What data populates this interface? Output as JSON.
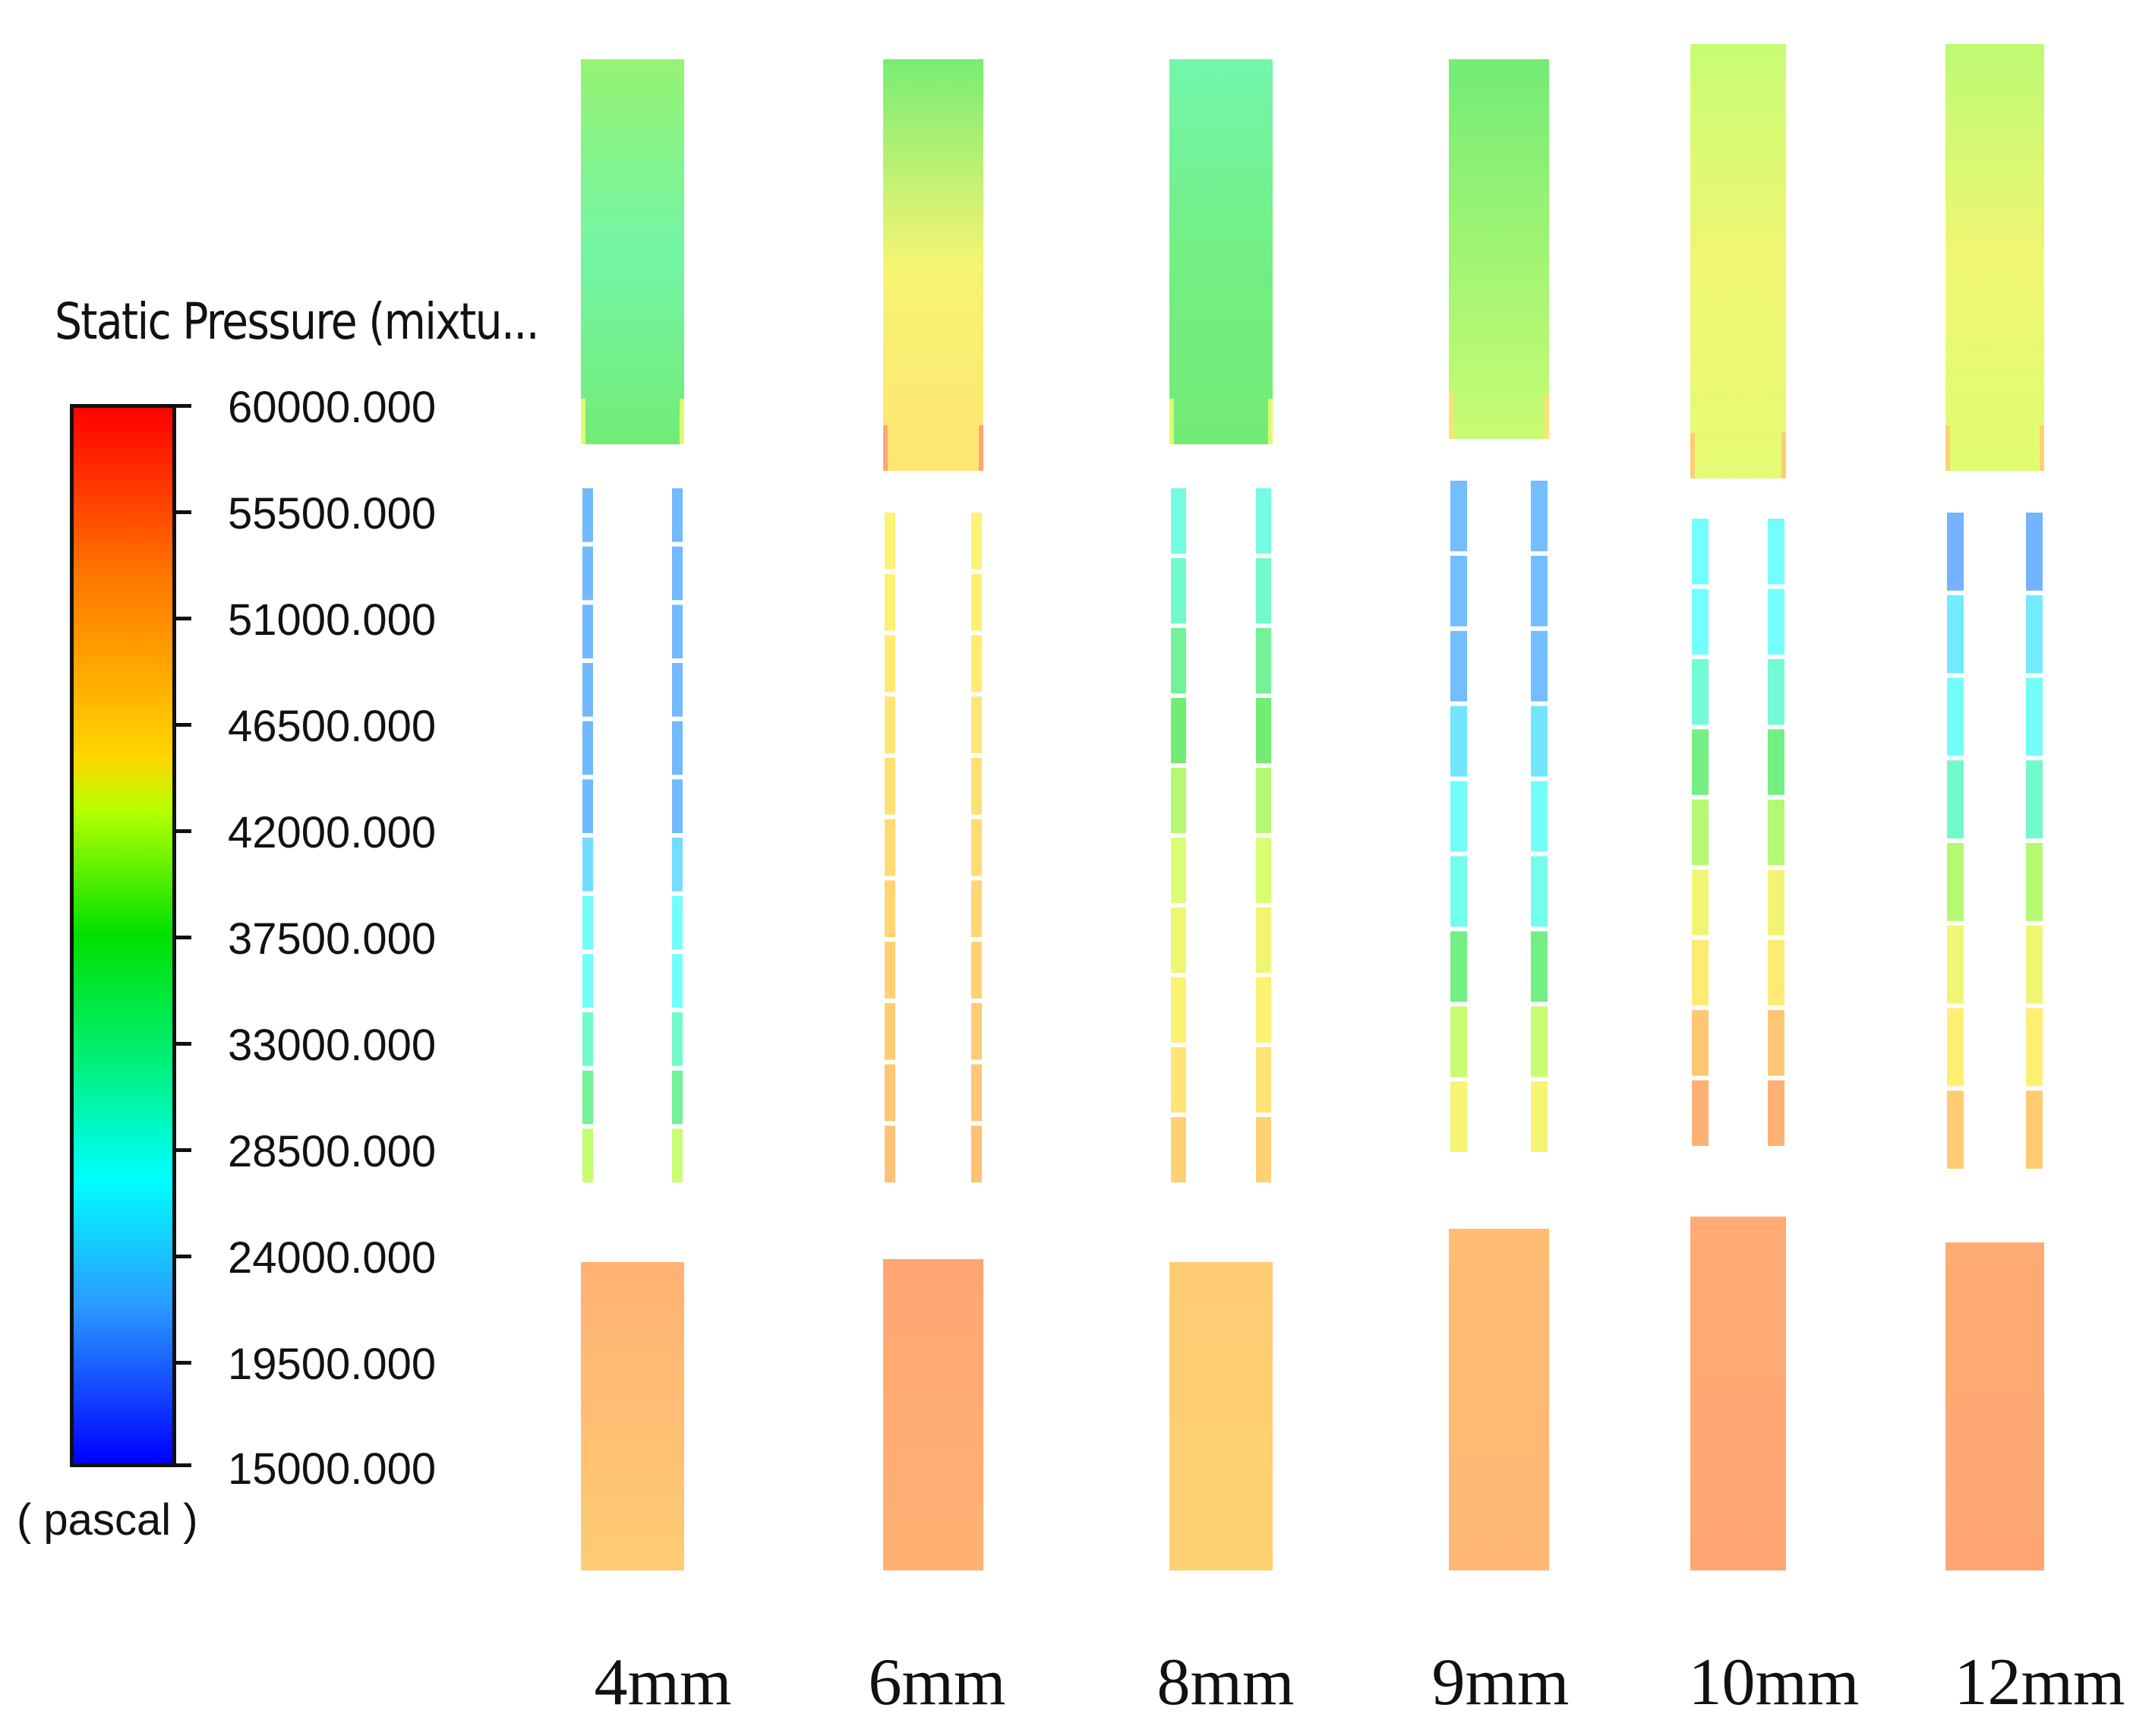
{
  "legend": {
    "title": "Static Pressure (mixtu...",
    "unit": "( pascal )",
    "tick_labels": [
      "60000.000",
      "55500.000",
      "51000.000",
      "46500.000",
      "42000.000",
      "37500.000",
      "33000.000",
      "28500.000",
      "24000.000",
      "19500.000",
      "15000.000"
    ],
    "max": 60000,
    "min": 15000,
    "colormap": [
      "#ff0000",
      "#ff7700",
      "#ffd500",
      "#00e000",
      "#00ffff",
      "#0000ff"
    ]
  },
  "cases": [
    {
      "label": "4mm",
      "top_pressure": [
        41500,
        36000,
        39500
      ],
      "bottom_pressure": [
        54500,
        52000
      ],
      "gap_pressure": [
        21500,
        21500,
        21500,
        21500,
        21500,
        21500,
        25000,
        29000,
        29000,
        33000,
        37000,
        44000
      ]
    },
    {
      "label": "6mm",
      "top_pressure": [
        40000,
        47500,
        49500
      ],
      "bottom_pressure": [
        55500,
        54500
      ],
      "gap_pressure": [
        48000,
        48500,
        49000,
        49500,
        50000,
        50500,
        51000,
        51500,
        52000,
        52500,
        53000
      ]
    },
    {
      "label": "8mm",
      "top_pressure": [
        35500,
        38500,
        39500
      ],
      "bottom_pressure": [
        52000,
        51500
      ],
      "gap_pressure": [
        31000,
        33000,
        37000,
        39500,
        43000,
        45000,
        47000,
        48000,
        49500,
        51500
      ]
    },
    {
      "label": "9mm",
      "top_pressure": [
        39500,
        42000,
        44000
      ],
      "bottom_pressure": [
        53500,
        54000
      ],
      "gap_pressure": [
        22000,
        22000,
        22000,
        26000,
        29000,
        30000,
        38500,
        44000,
        47500
      ]
    },
    {
      "label": "10mm",
      "top_pressure": [
        44000,
        47000,
        46000
      ],
      "bottom_pressure": [
        55000,
        55500
      ],
      "gap_pressure": [
        28500,
        28500,
        32000,
        38500,
        43000,
        47000,
        49000,
        52500,
        54500
      ]
    },
    {
      "label": "12mm",
      "top_pressure": [
        43500,
        47000,
        45500
      ],
      "bottom_pressure": [
        55000,
        55500
      ],
      "gap_pressure": [
        21000,
        26500,
        29000,
        33000,
        43000,
        47000,
        48500,
        52000
      ]
    }
  ]
}
